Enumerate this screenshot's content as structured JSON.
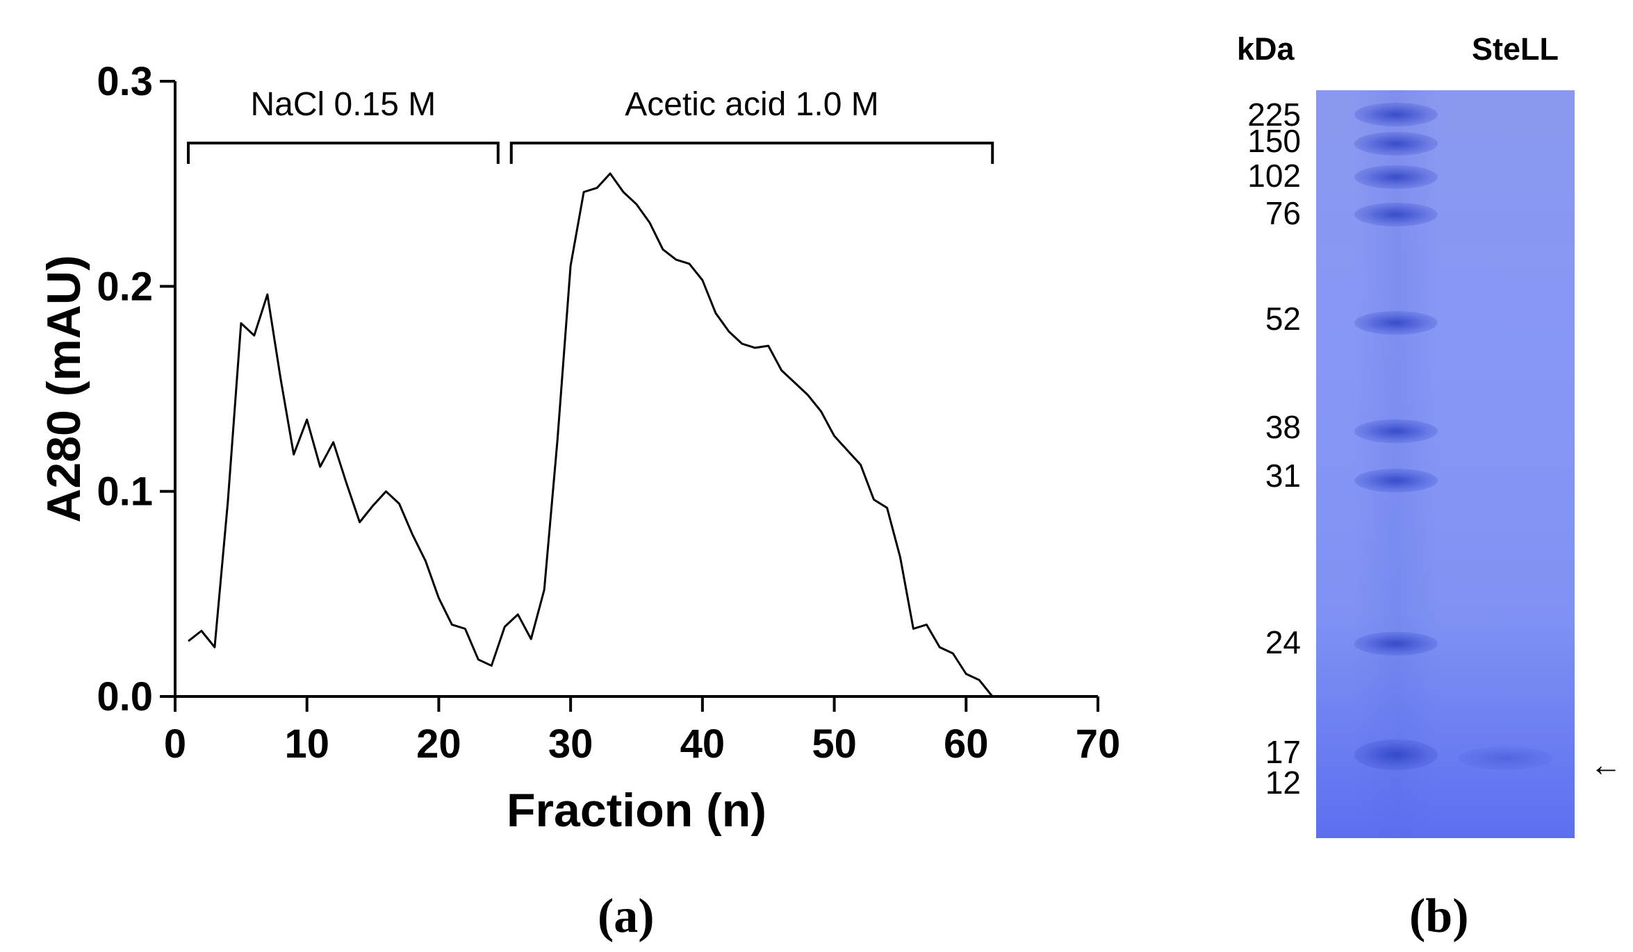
{
  "chart_data": {
    "type": "line",
    "xlabel": "Fraction (n)",
    "ylabel": "A280 (mAU)",
    "xlim": [
      0,
      70
    ],
    "ylim": [
      0,
      0.3
    ],
    "x_ticks": [
      "0",
      "10",
      "20",
      "30",
      "40",
      "50",
      "60",
      "70"
    ],
    "y_ticks": [
      "0.0",
      "0.1",
      "0.2",
      "0.3"
    ],
    "grid": false,
    "series": [
      {
        "x": [
          1,
          2,
          3,
          4,
          5,
          6,
          7,
          8,
          9,
          10,
          11,
          12,
          13,
          14,
          15,
          16,
          17,
          18,
          19,
          20,
          21,
          22,
          23,
          24,
          25,
          26,
          27,
          28,
          29,
          30,
          31,
          32,
          33,
          34,
          35,
          36,
          37,
          38,
          39,
          40,
          41,
          42,
          43,
          44,
          45,
          46,
          47,
          48,
          49,
          50,
          51,
          52,
          53,
          54,
          55,
          56,
          57,
          58,
          59,
          60,
          61,
          62
        ],
        "y": [
          0.027,
          0.032,
          0.024,
          0.095,
          0.182,
          0.176,
          0.196,
          0.155,
          0.118,
          0.135,
          0.112,
          0.124,
          0.104,
          0.085,
          0.093,
          0.1,
          0.094,
          0.079,
          0.066,
          0.048,
          0.035,
          0.033,
          0.018,
          0.015,
          0.034,
          0.04,
          0.028,
          0.052,
          0.125,
          0.21,
          0.246,
          0.248,
          0.255,
          0.246,
          0.24,
          0.231,
          0.218,
          0.213,
          0.211,
          0.203,
          0.187,
          0.178,
          0.172,
          0.17,
          0.171,
          0.159,
          0.153,
          0.147,
          0.139,
          0.127,
          0.12,
          0.113,
          0.096,
          0.092,
          0.068,
          0.033,
          0.035,
          0.024,
          0.021,
          0.011,
          0.008,
          0.0
        ]
      }
    ],
    "annotations": [
      {
        "text": "NaCl 0.15 M",
        "x_start": 1,
        "x_end": 24.5
      },
      {
        "text": "Acetic acid 1.0 M",
        "x_start": 25.5,
        "x_end": 62
      }
    ]
  },
  "panels": {
    "a_label": "(a)",
    "b_label": "(b)"
  },
  "gel": {
    "unit_header": "kDa",
    "sample_header": "SteLL",
    "markers": [
      "225",
      "150",
      "102",
      "76",
      "52",
      "38",
      "31",
      "24",
      "17",
      "12"
    ],
    "arrow": "←",
    "colors": {
      "gel": "#8797f5",
      "band": "#2d41c3"
    }
  }
}
